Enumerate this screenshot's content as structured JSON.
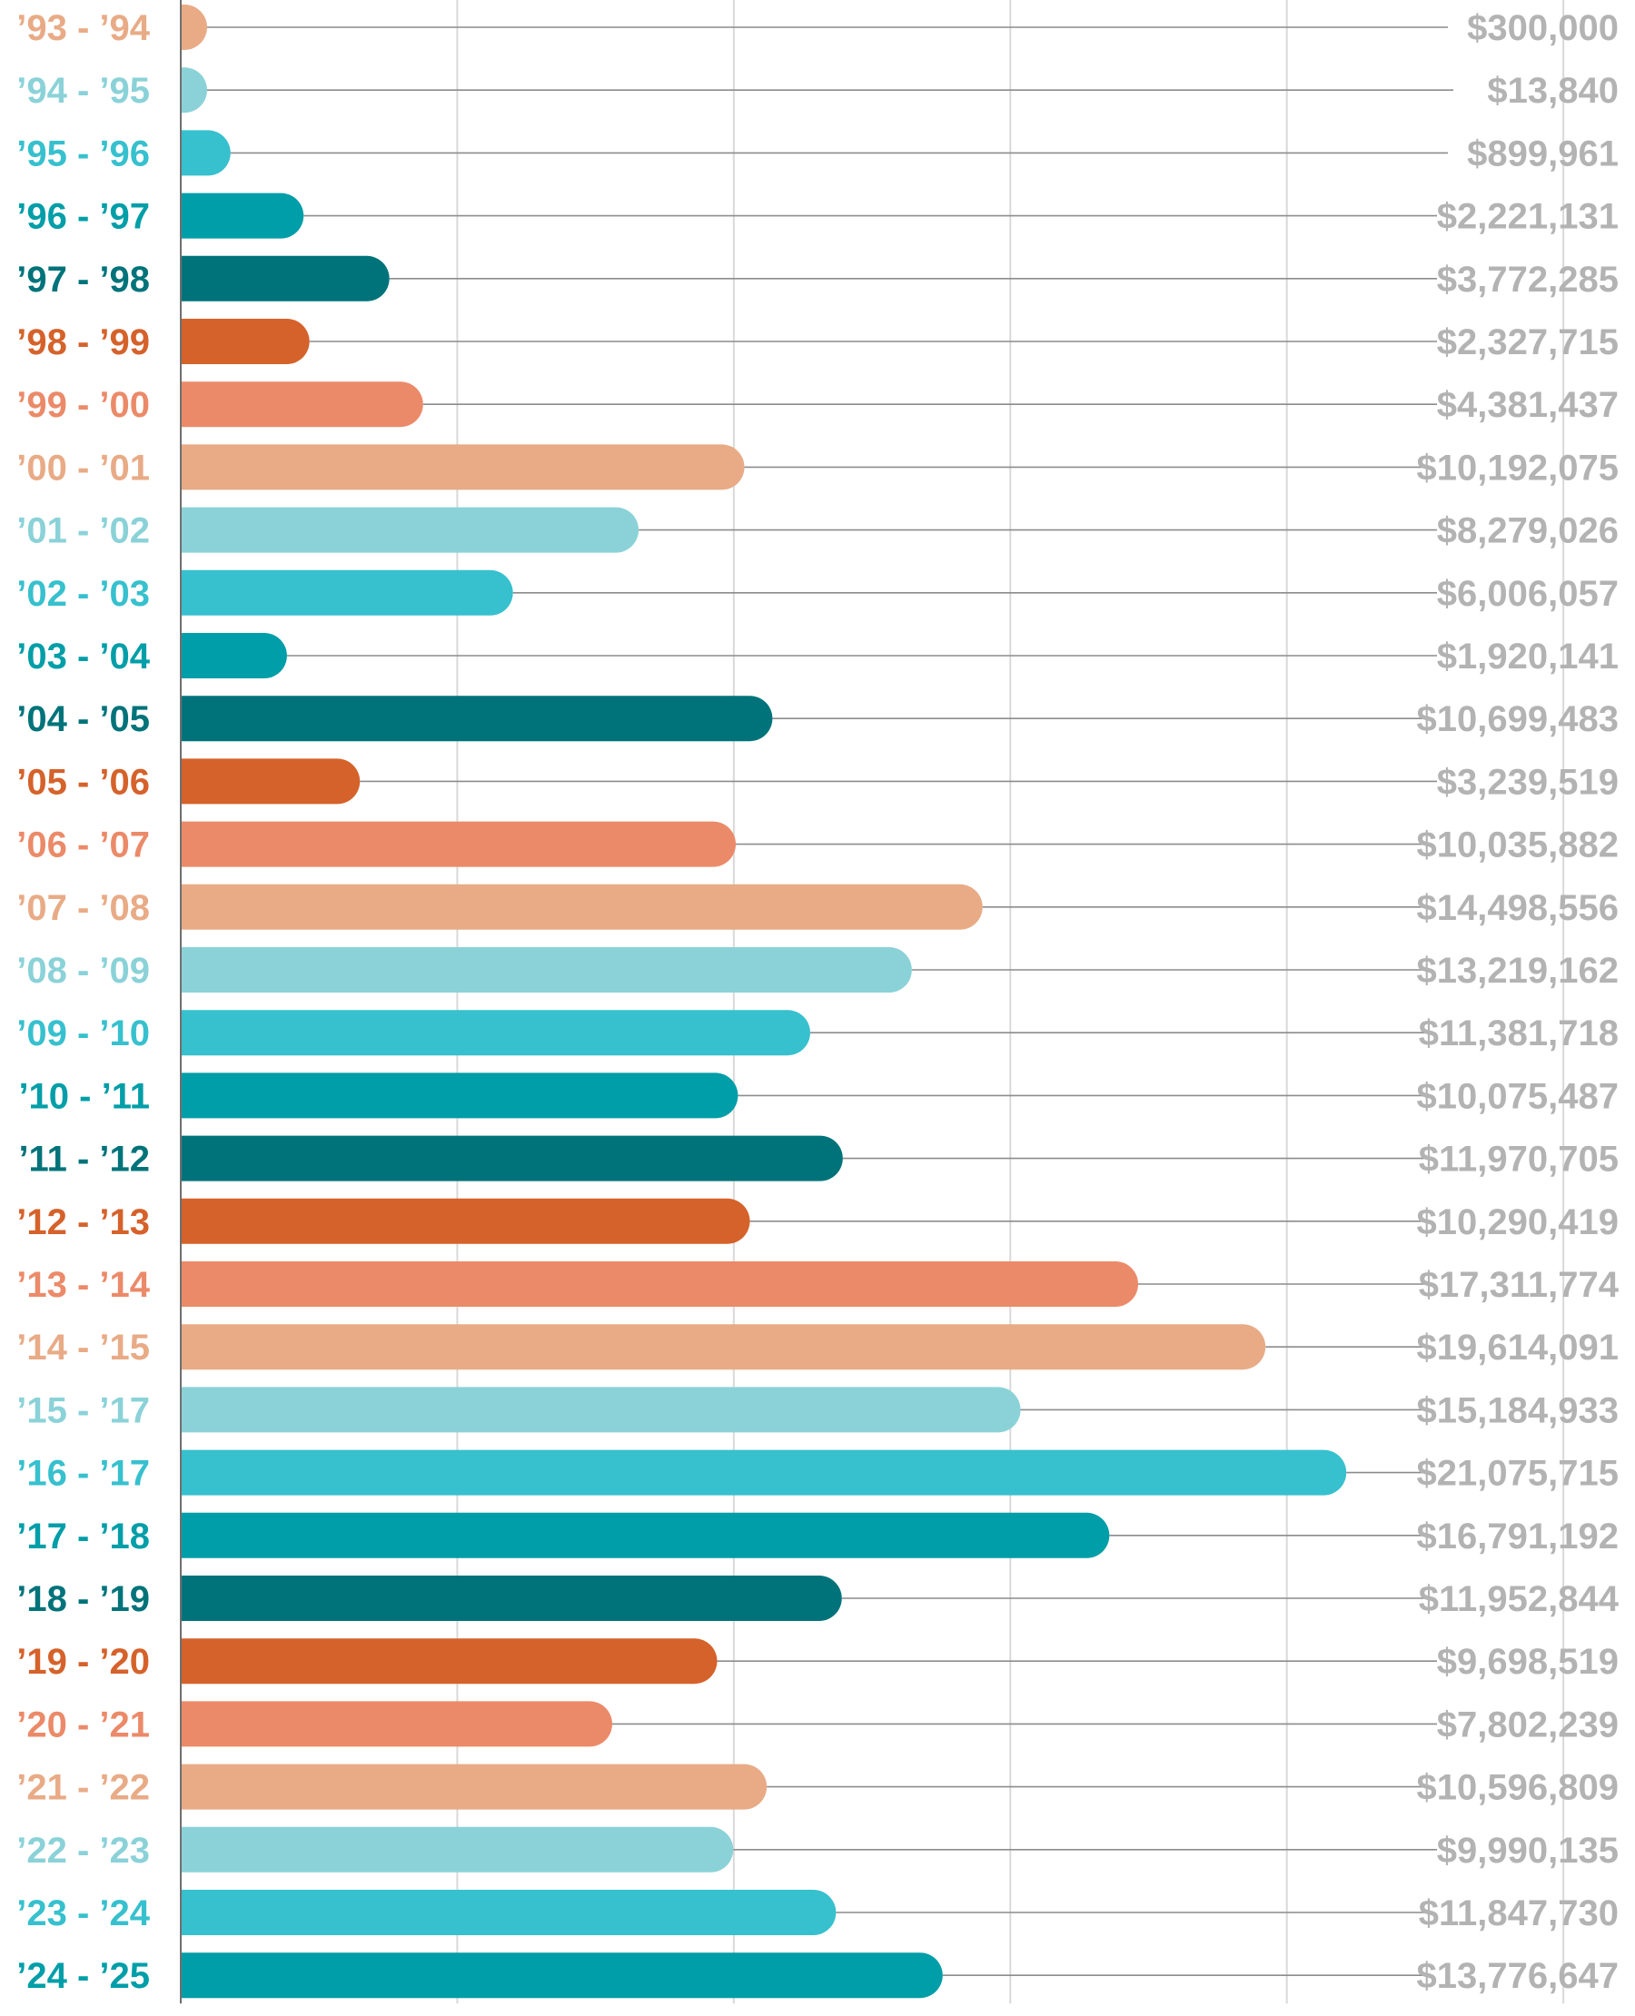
{
  "chart_data": {
    "type": "bar",
    "orientation": "horizontal",
    "title": "",
    "xlabel": "",
    "ylabel": "",
    "xlim": [
      0,
      26000000
    ],
    "grid": true,
    "legend": "none",
    "palette": [
      "#e8ab86",
      "#8ad2d8",
      "#37c0ce",
      "#009ea8",
      "#00737a",
      "#d5622b",
      "#eb8a69"
    ],
    "categories": [
      "’93 - ’94",
      "’94 - ’95",
      "’95 - ’96",
      "’96 - ’97",
      "’97 - ’98",
      "’98 - ’99",
      "’99 - ’00",
      "’00 - ’01",
      "’01 - ’02",
      "’02 - ’03",
      "’03 - ’04",
      "’04 - ’05",
      "’05 - ’06",
      "’06 - ’07",
      "’07 - ’08",
      "’08 - ’09",
      "’09 - ’10",
      "’10 - ’11",
      "’11 - ’12",
      "’12 - ’13",
      "’13 - ’14",
      "’14 - ’15",
      "’15 - ’17",
      "’16 - ’17",
      "’17 - ’18",
      "’18 - ’19",
      "’19 - ’20",
      "’20 - ’21",
      "’21 - ’22",
      "’22 - ’23",
      "’23 - ’24",
      "’24 - ’25"
    ],
    "values": [
      300000,
      13840,
      899961,
      2221131,
      3772285,
      2327715,
      4381437,
      10192075,
      8279026,
      6006057,
      1920141,
      10699483,
      3239519,
      10035882,
      14498556,
      13219162,
      11381718,
      10075487,
      11970705,
      10290419,
      17311774,
      19614091,
      15184933,
      21075715,
      16791192,
      11952844,
      9698519,
      7802239,
      10596809,
      9990135,
      11847730,
      13776647
    ],
    "value_labels": [
      "$300,000",
      "$13,840",
      "$899,961",
      "$2,221,131",
      "$3,772,285",
      "$2,327,715",
      "$4,381,437",
      "$10,192,075",
      "$8,279,026",
      "$6,006,057",
      "$1,920,141",
      "$10,699,483",
      "$3,239,519",
      "$10,035,882",
      "$14,498,556",
      "$13,219,162",
      "$11,381,718",
      "$10,075,487",
      "$11,970,705",
      "$10,290,419",
      "$17,311,774",
      "$19,614,091",
      "$15,184,933",
      "$21,075,715",
      "$16,791,192",
      "$11,952,844",
      "$9,698,519",
      "$7,802,239",
      "$10,596,809",
      "$9,990,135",
      "$11,847,730",
      "$13,776,647"
    ]
  }
}
